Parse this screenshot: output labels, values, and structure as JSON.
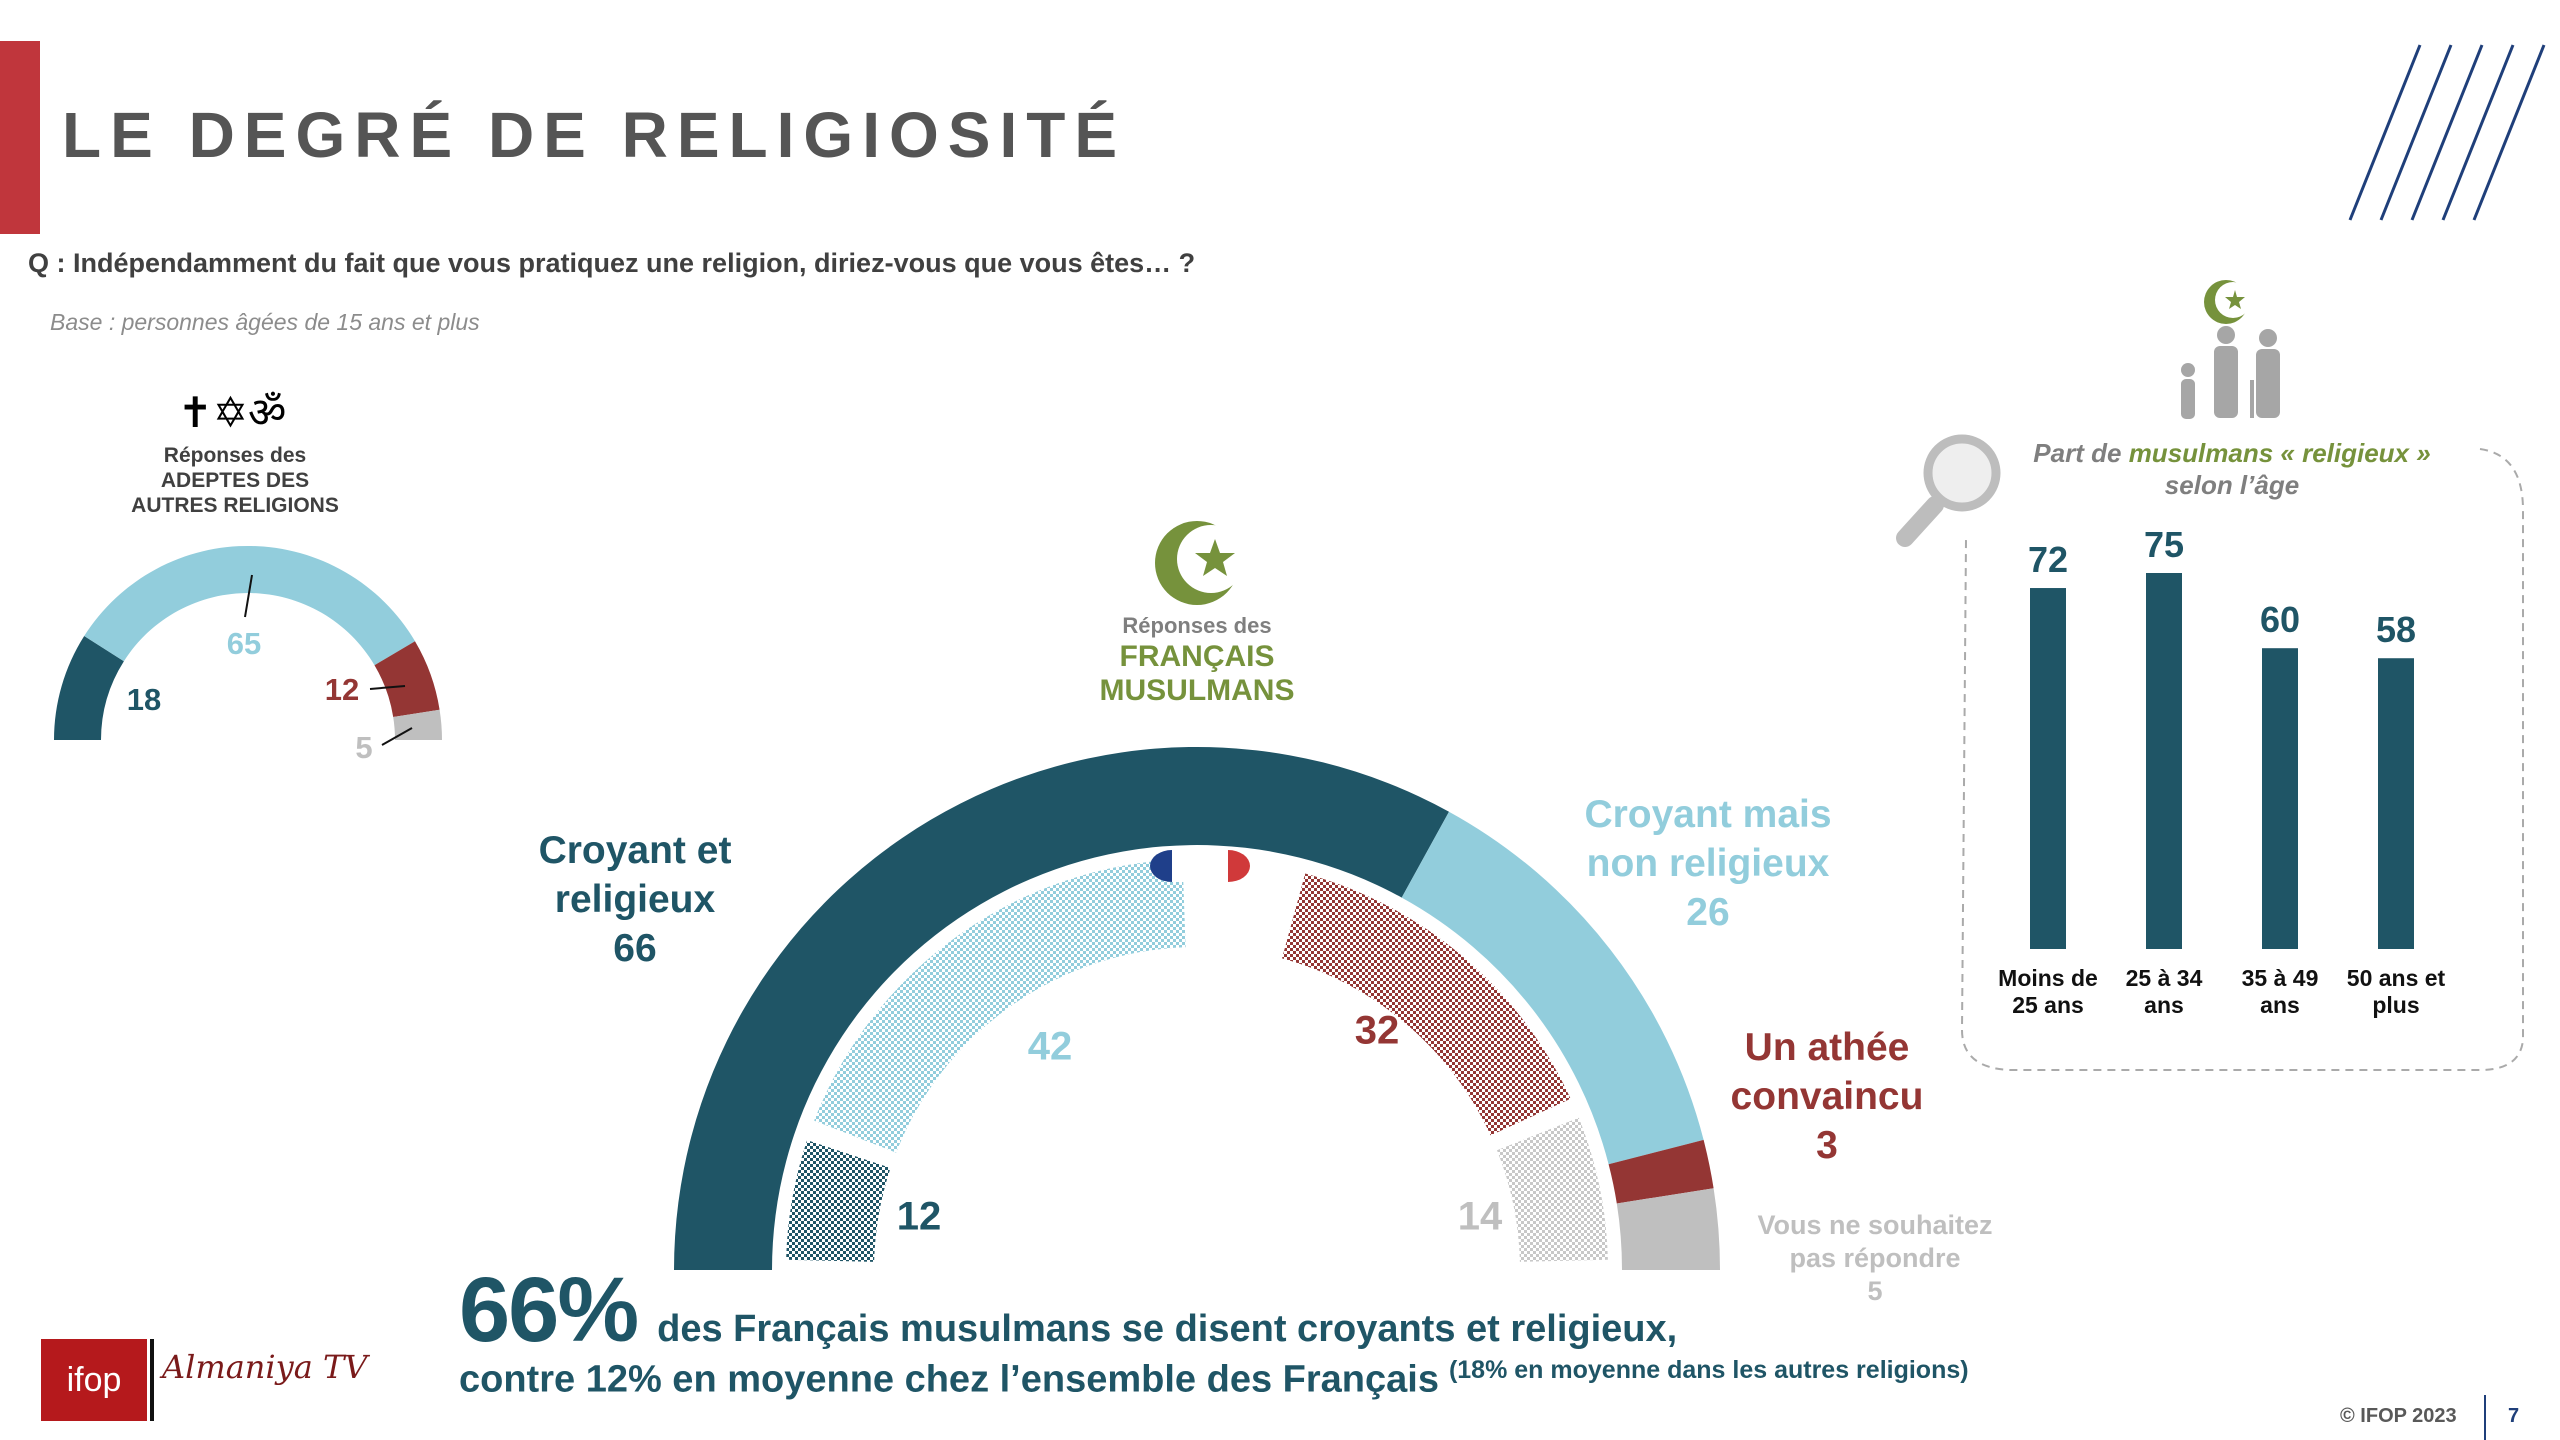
{
  "header": {
    "title": "LE DEGRÉ DE RELIGIOSITÉ",
    "question": "Q : Indépendamment du fait que vous pratiquez une religion, diriez-vous que vous êtes… ?",
    "base": "Base : personnes âgées de 15 ans et plus"
  },
  "colors": {
    "dark_teal": "#1f5566",
    "light_blue": "#92cddc",
    "dark_red": "#943634",
    "gray": "#bfbfbf",
    "green": "#76923c",
    "brand_red": "#c0363c"
  },
  "small_gauge": {
    "icons": [
      "cross-icon",
      "star-of-david-icon",
      "om-icon"
    ],
    "label_line1": "Réponses des",
    "label_line2": "ADEPTES DES",
    "label_line3": "AUTRES RELIGIONS"
  },
  "muslim_gauge": {
    "icon": "crescent-star-icon",
    "label_line1": "Réponses des",
    "label_line2": "FRANÇAIS",
    "label_line3": "MUSULMANS",
    "cat1_line1": "Croyant et",
    "cat1_line2": "religieux",
    "cat2_line1": "Croyant mais",
    "cat2_line2": "non religieux",
    "cat3_line1": "Un athée",
    "cat3_line2": "convaincu",
    "cat4_line1": "Vous ne souhaitez",
    "cat4_line2": "pas répondre"
  },
  "headline": {
    "big_value": "66%",
    "line1": "des Français musulmans se disent croyants et religieux,",
    "line2": "contre 12% en moyenne chez l’ensemble des Français",
    "note": "(18% en moyenne dans les autres religions)"
  },
  "footer": {
    "copyright": "© IFOP 2023",
    "page": "7",
    "logo1": "ifop",
    "logo2": "Almaniya TV"
  },
  "chart_data": [
    {
      "type": "pie",
      "subtype": "semi-donut",
      "title": "Réponses des ADEPTES DES AUTRES RELIGIONS",
      "categories": [
        "Croyant et religieux",
        "Croyant mais non religieux",
        "Un athée convaincu",
        "Vous ne souhaitez pas répondre"
      ],
      "values": [
        18,
        65,
        12,
        5
      ],
      "labels": [
        "18",
        "65",
        "12",
        "5"
      ],
      "colors": [
        "#1f5566",
        "#92cddc",
        "#943634",
        "#bfbfbf"
      ]
    },
    {
      "type": "pie",
      "subtype": "semi-donut",
      "title": "Réponses des FRANÇAIS MUSULMANS",
      "categories": [
        "Croyant et religieux",
        "Croyant mais non religieux",
        "Un athée convaincu",
        "Vous ne souhaitez pas répondre"
      ],
      "values": [
        66,
        26,
        3,
        5
      ],
      "labels": [
        "66",
        "26",
        "3",
        "5"
      ],
      "colors": [
        "#1f5566",
        "#92cddc",
        "#943634",
        "#bfbfbf"
      ],
      "inner_ring": {
        "series": "Ensemble des Français",
        "values": [
          12,
          42,
          32,
          14
        ],
        "labels": [
          "12",
          "42",
          "32",
          "14"
        ],
        "colors": [
          "#1f5566",
          "#92cddc",
          "#943634",
          "#bfbfbf"
        ]
      }
    },
    {
      "type": "bar",
      "title_part1": "Part de",
      "title_highlight": "musulmans « religieux »",
      "title_part2": "selon l’âge",
      "categories": [
        [
          "Moins de",
          "25 ans"
        ],
        [
          "25 à 34",
          "ans"
        ],
        [
          "35 à 49",
          "ans"
        ],
        [
          "50 ans et",
          "plus"
        ]
      ],
      "values": [
        72,
        75,
        60,
        58
      ],
      "color": "#1f5566",
      "ylim": [
        0,
        75
      ]
    }
  ]
}
